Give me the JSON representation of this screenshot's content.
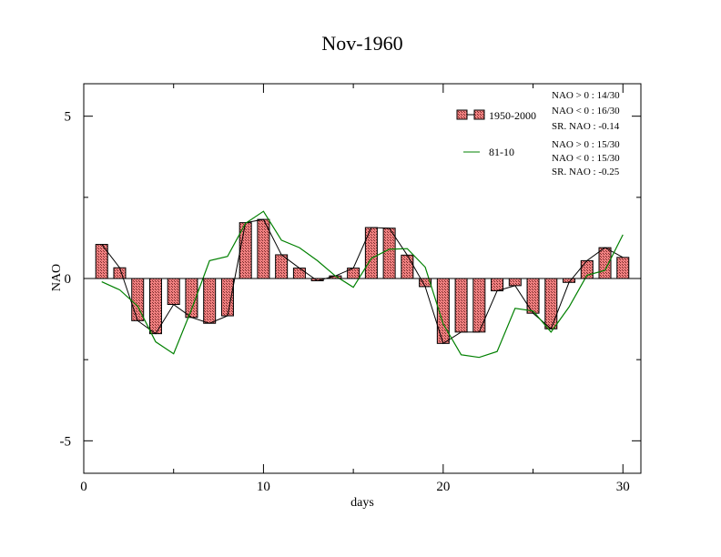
{
  "chart_data": {
    "type": "bar",
    "title": "Nov-1960",
    "xlabel": "days",
    "ylabel": "NAO",
    "xlim": [
      0,
      31
    ],
    "ylim": [
      -6,
      6
    ],
    "x_ticks": [
      0,
      10,
      20,
      30
    ],
    "x_tick_labels": [
      "0",
      "10",
      "20",
      "30"
    ],
    "y_ticks": [
      -5,
      0,
      5
    ],
    "y_tick_labels": [
      "-5",
      "0",
      "5"
    ],
    "grid": false,
    "legend_position": "top-right",
    "x": [
      1,
      2,
      3,
      4,
      5,
      6,
      7,
      8,
      9,
      10,
      11,
      12,
      13,
      14,
      15,
      16,
      17,
      18,
      19,
      20,
      21,
      22,
      23,
      24,
      25,
      26,
      27,
      28,
      29,
      30
    ],
    "series": [
      {
        "name": "1950-2000",
        "kind": "bar+line",
        "color": "#f08080",
        "values": [
          1.05,
          0.33,
          -1.3,
          -1.7,
          -0.8,
          -1.2,
          -1.38,
          -1.15,
          1.72,
          1.82,
          0.73,
          0.32,
          -0.07,
          0.08,
          0.32,
          1.57,
          1.55,
          0.72,
          -0.25,
          -2.0,
          -1.65,
          -1.65,
          -0.38,
          -0.22,
          -1.07,
          -1.55,
          -0.12,
          0.55,
          0.95,
          0.65
        ]
      },
      {
        "name": "81-10",
        "kind": "line",
        "color": "#008000",
        "values": [
          -0.1,
          -0.35,
          -0.85,
          -1.95,
          -2.32,
          -0.95,
          0.55,
          0.68,
          1.7,
          2.07,
          1.18,
          0.95,
          0.55,
          0.08,
          -0.27,
          0.62,
          0.9,
          0.92,
          0.35,
          -1.4,
          -2.35,
          -2.43,
          -2.25,
          -0.92,
          -1.0,
          -1.65,
          -0.88,
          0.1,
          0.25,
          1.35
        ]
      }
    ],
    "legend": [
      {
        "label": "1950-2000",
        "stats": [
          "NAO > 0 : 14/30",
          "NAO < 0 : 16/30",
          "SR. NAO : -0.14"
        ]
      },
      {
        "label": "81-10",
        "stats": [
          "NAO > 0 : 15/30",
          "NAO < 0 : 15/30",
          "SR. NAO : -0.25"
        ]
      }
    ]
  }
}
